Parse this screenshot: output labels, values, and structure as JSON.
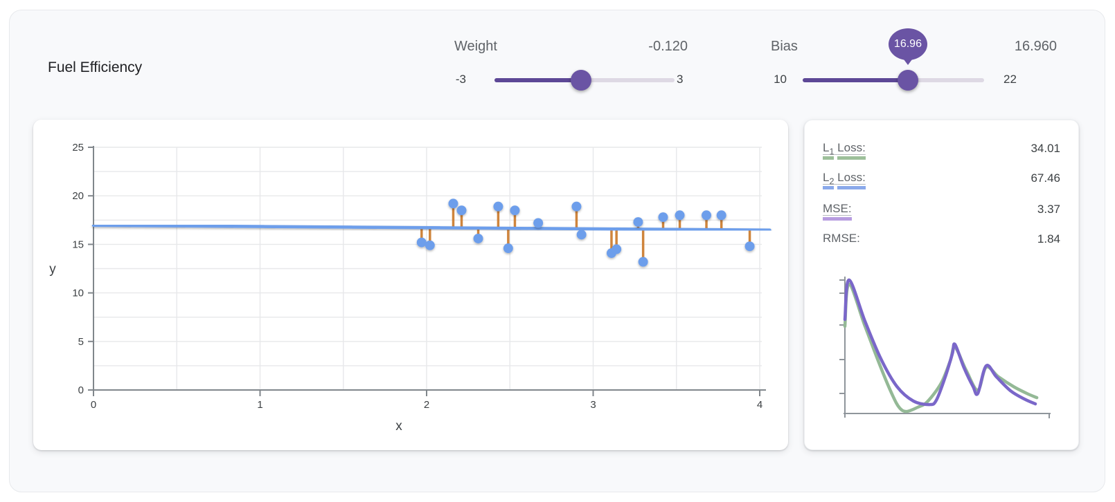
{
  "title": "Fuel Efficiency",
  "colors": {
    "accent_purple": "#6a54a4",
    "track_fill_purple": "#5d4896",
    "track_empty": "#ded9e4",
    "point_blue": "#6d9eeb",
    "fit_line_blue": "#6d9eeb",
    "residual_orange": "#cd7f33",
    "loss_green": "#94b996",
    "loss_purple": "#7a67c9",
    "axis_gray": "#80868b",
    "grid_gray": "#e7e8ea"
  },
  "sliders": {
    "weight": {
      "label": "Weight",
      "value_display": "-0.120",
      "value": -0.12,
      "min": -3,
      "max": 3,
      "min_label": "-3",
      "max_label": "3"
    },
    "bias": {
      "label": "Bias",
      "value_display": "16.960",
      "value": 16.96,
      "min": 10,
      "max": 22,
      "min_label": "10",
      "max_label": "22",
      "tooltip": "16.96"
    }
  },
  "loss_panel": {
    "metrics": [
      {
        "label_main": "L",
        "label_sub": "1",
        "label_rest": "Loss:",
        "value": "34.01",
        "underline_color": "#9dbf9a"
      },
      {
        "label_main": "L",
        "label_sub": "2",
        "label_rest": "Loss:",
        "value": "67.46",
        "underline_color": "#8aa9ea"
      },
      {
        "label_main": "MSE:",
        "value": "3.37",
        "underline_color": "#b79ce0"
      },
      {
        "label_main": "RMSE:",
        "value": "1.84"
      }
    ]
  },
  "chart_data": [
    {
      "type": "scatter",
      "title": "Fuel Efficiency",
      "xlabel": "x",
      "ylabel": "y",
      "xlim": [
        0,
        4
      ],
      "ylim": [
        0,
        25
      ],
      "x_ticks": [
        0,
        1,
        2,
        3,
        4
      ],
      "y_ticks": [
        0,
        5,
        10,
        15,
        20,
        25
      ],
      "grid": {
        "x_minor": 0.5,
        "y_minor": 2.5,
        "on": true
      },
      "points": [
        [
          1.97,
          15.2
        ],
        [
          2.02,
          14.9
        ],
        [
          2.16,
          19.2
        ],
        [
          2.21,
          18.5
        ],
        [
          2.31,
          15.6
        ],
        [
          2.43,
          18.9
        ],
        [
          2.49,
          14.6
        ],
        [
          2.53,
          18.5
        ],
        [
          2.67,
          17.2
        ],
        [
          2.9,
          18.9
        ],
        [
          2.93,
          16.0
        ],
        [
          3.11,
          14.1
        ],
        [
          3.14,
          14.5
        ],
        [
          3.27,
          17.3
        ],
        [
          3.3,
          13.2
        ],
        [
          3.42,
          17.8
        ],
        [
          3.52,
          18.0
        ],
        [
          3.68,
          18.0
        ],
        [
          3.77,
          18.0
        ],
        [
          3.94,
          14.8
        ]
      ],
      "fit_line": {
        "weight": -0.12,
        "bias": 16.96,
        "x_start": 0,
        "x_end": 4.06
      },
      "residuals": true
    },
    {
      "type": "line",
      "title": "loss history (unlabeled sparkline)",
      "legend_position": "none",
      "series": [
        {
          "name": "L1 loss",
          "color": "#94b996",
          "points_frac": [
            [
              0,
              0.357
            ],
            [
              0.02,
              0.046
            ],
            [
              0.098,
              0.357
            ],
            [
              0.175,
              0.663
            ],
            [
              0.232,
              0.867
            ],
            [
              0.266,
              0.959
            ],
            [
              0.3,
              0.985
            ],
            [
              0.354,
              0.954
            ],
            [
              0.401,
              0.913
            ],
            [
              0.468,
              0.776
            ],
            [
              0.512,
              0.612
            ],
            [
              0.535,
              0.51
            ],
            [
              0.589,
              0.679
            ],
            [
              0.646,
              0.827
            ],
            [
              0.687,
              0.658
            ],
            [
              0.747,
              0.73
            ],
            [
              0.825,
              0.806
            ],
            [
              0.892,
              0.857
            ],
            [
              0.933,
              0.883
            ]
          ]
        },
        {
          "name": "MSE loss",
          "color": "#7a67c9",
          "points_frac": [
            [
              0,
              0.306
            ],
            [
              0.02,
              0.015
            ],
            [
              0.098,
              0.321
            ],
            [
              0.175,
              0.597
            ],
            [
              0.253,
              0.801
            ],
            [
              0.333,
              0.908
            ],
            [
              0.411,
              0.934
            ],
            [
              0.444,
              0.903
            ],
            [
              0.488,
              0.73
            ],
            [
              0.522,
              0.561
            ],
            [
              0.535,
              0.49
            ],
            [
              0.579,
              0.663
            ],
            [
              0.623,
              0.801
            ],
            [
              0.646,
              0.852
            ],
            [
              0.687,
              0.648
            ],
            [
              0.737,
              0.73
            ],
            [
              0.805,
              0.832
            ],
            [
              0.872,
              0.893
            ],
            [
              0.926,
              0.929
            ]
          ]
        }
      ]
    }
  ]
}
